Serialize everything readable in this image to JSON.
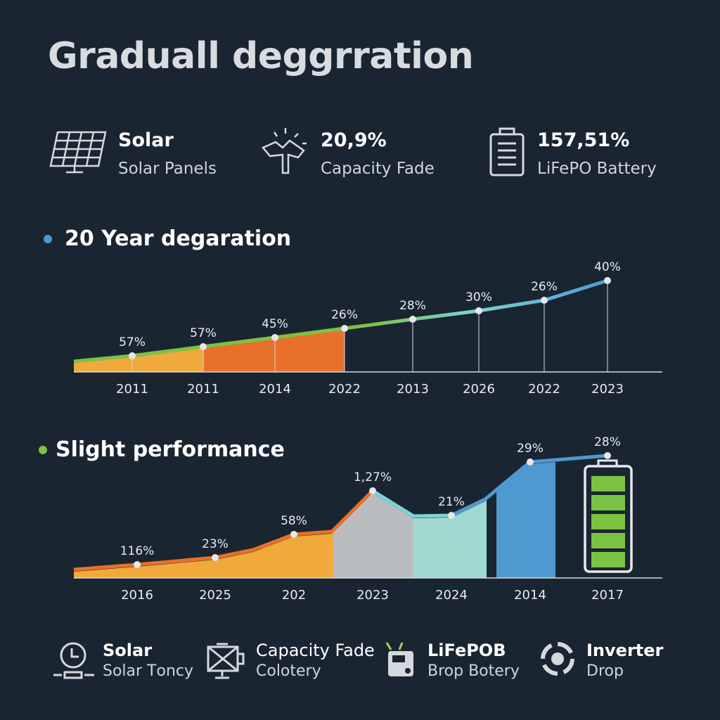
{
  "title": "Graduall deggrration",
  "stats": [
    {
      "icon": "solar-panel-icon",
      "title": "Solar",
      "subtitle": "Solar Panels"
    },
    {
      "icon": "wind-turbine-icon",
      "title": "20,9%",
      "subtitle": "Capacity Fade"
    },
    {
      "icon": "battery-icon",
      "title": "157,51%",
      "subtitle": "LiFePO Battery"
    }
  ],
  "colors": {
    "background": "#1a2532",
    "green": "#7cc243",
    "orange": "#e8702a",
    "yellow": "#f0a93a",
    "teal": "#7dd3d8",
    "blue": "#4e9ad0",
    "gray": "#b9bdc0"
  },
  "chart_data": [
    {
      "type": "area",
      "title": "20 Year degaration",
      "title_dot_color": "#4e9ad0",
      "categories": [
        "2011",
        "2011",
        "2014",
        "2022",
        "2013",
        "2026",
        "2022",
        "2023"
      ],
      "labels": [
        "57%",
        "57%",
        "45%",
        "26%",
        "28%",
        "30%",
        "26%",
        "40%"
      ],
      "grid": false
    },
    {
      "type": "area",
      "title": "Slight performance",
      "title_dot_color": "#7cc243",
      "categories": [
        "2016",
        "2025",
        "202",
        "2023",
        "2024",
        "2014",
        "2017"
      ],
      "labels": [
        "116%",
        "23%",
        "58%",
        "1,27%",
        "21%",
        "29%",
        "28%"
      ],
      "battery_level": 1.0,
      "grid": false
    }
  ],
  "footer": [
    {
      "icon": "clock-icon",
      "title": "Solar",
      "subtitle": "Solar Tоncy"
    },
    {
      "icon": "panel-cross-icon",
      "title": "Capacity Fade",
      "subtitle": "Colotery"
    },
    {
      "icon": "battery-device-icon",
      "title": "LiFePOB",
      "subtitle": "Brop Botery"
    },
    {
      "icon": "inverter-icon",
      "title": "Inverter",
      "subtitle": "Drop"
    }
  ]
}
